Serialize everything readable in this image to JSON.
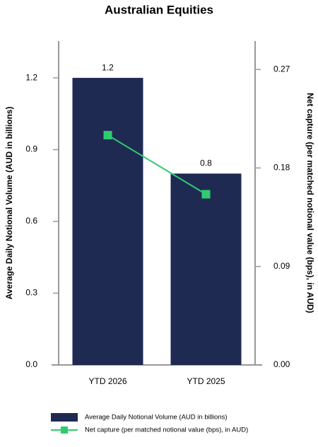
{
  "chart_data": {
    "type": "bar-line",
    "title": "Australian Equities",
    "categories": [
      "YTD 2026",
      "YTD 2025"
    ],
    "series": [
      {
        "name": "Average Daily Notional Volume (AUD in billions)",
        "type": "bar",
        "color": "#1f2a52",
        "values": [
          1.2,
          0.8
        ]
      },
      {
        "name": "Net capture (per matched notional value (bps), in AUD)",
        "type": "line",
        "color": "#2ecc71",
        "axis": "y2",
        "values": [
          0.21,
          0.156
        ]
      }
    ],
    "ylabel": "Average Daily Notional Volume (AUD in billions)",
    "y2label": "Net capture (per matched notional value (bps), in AUD)",
    "ylim": [
      0,
      1.354
    ],
    "yticks": [
      {
        "value": 0,
        "label": "0.0"
      },
      0.3,
      0.6,
      0.9,
      1.2
    ],
    "y2lim": [
      0,
      0.296
    ],
    "y2ticks": [
      {
        "value": 0,
        "label": "0.00"
      },
      0.09,
      0.18,
      0.27
    ],
    "legend": "bottom"
  }
}
